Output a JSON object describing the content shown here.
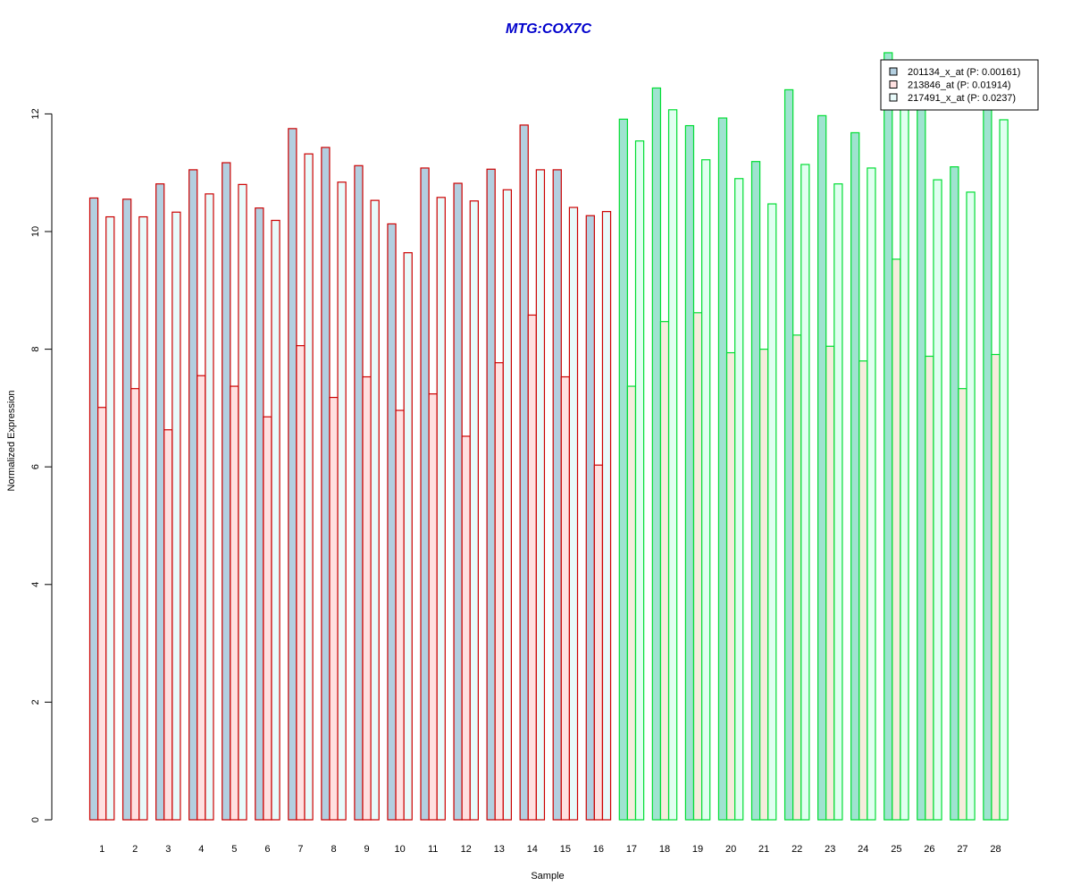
{
  "chart_data": {
    "type": "bar",
    "title": "MTG:COX7C",
    "xlabel": "Sample",
    "ylabel": "Normalized Expression",
    "ylim": [
      0,
      13
    ],
    "y_ticks": [
      0,
      2,
      4,
      6,
      8,
      10,
      12
    ],
    "categories": [
      "1",
      "2",
      "3",
      "4",
      "5",
      "6",
      "7",
      "8",
      "9",
      "10",
      "11",
      "12",
      "13",
      "14",
      "15",
      "16",
      "17",
      "18",
      "19",
      "20",
      "21",
      "22",
      "23",
      "24",
      "25",
      "26",
      "27",
      "28"
    ],
    "group_split_after": 16,
    "legend_position": "top-right",
    "series": [
      {
        "name": "201134_x_at (P: 0.00161)",
        "values": [
          10.57,
          10.55,
          10.81,
          11.05,
          11.17,
          10.4,
          11.75,
          11.43,
          11.12,
          10.13,
          11.08,
          10.82,
          11.06,
          11.81,
          11.05,
          10.27,
          11.91,
          12.44,
          11.8,
          11.93,
          11.19,
          12.41,
          11.97,
          11.68,
          13.04,
          12.2,
          11.1,
          12.2
        ]
      },
      {
        "name": "213846_at (P: 0.01914)",
        "values": [
          7.01,
          7.33,
          6.63,
          7.55,
          7.37,
          6.85,
          8.06,
          7.18,
          7.53,
          6.96,
          7.24,
          6.52,
          7.77,
          8.58,
          7.53,
          6.03,
          7.37,
          8.47,
          8.62,
          7.94,
          8.0,
          8.24,
          8.05,
          7.8,
          9.53,
          7.88,
          7.33,
          7.91
        ]
      },
      {
        "name": "217491_x_at (P: 0.0237)",
        "values": [
          10.25,
          10.25,
          10.33,
          10.64,
          10.8,
          10.19,
          11.32,
          10.84,
          10.53,
          9.64,
          10.58,
          10.52,
          10.71,
          11.05,
          10.41,
          10.34,
          11.54,
          12.07,
          11.22,
          10.9,
          10.47,
          11.14,
          10.81,
          11.08,
          12.2,
          10.88,
          10.67,
          11.9
        ]
      }
    ],
    "colors": {
      "title": "#0000cc",
      "group1_border": "#cc0000",
      "group2_border": "#00dd33",
      "group1_fills": [
        "#b3cfe0",
        "#ffe0e0",
        "#e8fafa"
      ],
      "group2_fills": [
        "#9fe3d0",
        "#f5ecdc",
        "#e0fff0"
      ],
      "legend_swatches": [
        "#b3cfe0",
        "#ffe0e0",
        "#e8fafa"
      ]
    }
  }
}
